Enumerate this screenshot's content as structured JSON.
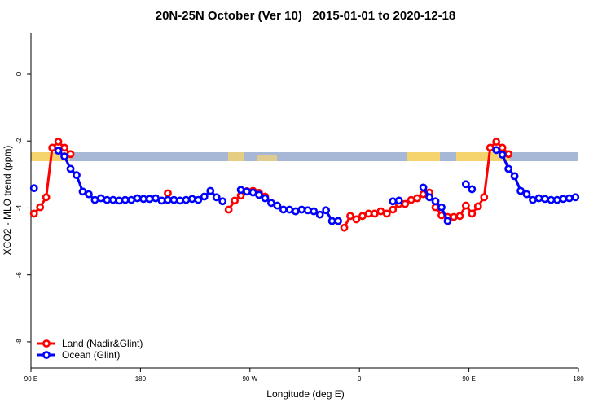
{
  "chart_data": {
    "type": "line",
    "title": "20N-25N October (Ver 10)   2015-01-01 to 2020-12-18",
    "xlabel": "Longitude (deg E)",
    "ylabel": "XCO2 - MLO trend (ppm)",
    "xlim": [
      90,
      540
    ],
    "xticks": [
      {
        "value": 90,
        "label": "90 E"
      },
      180,
      {
        "value": 270,
        "label": "90 W"
      },
      {
        "value": 360,
        "label": "0"
      },
      {
        "value": 450,
        "label": "90 E"
      },
      {
        "value": 540,
        "label": "180"
      }
    ],
    "ylim": [
      -8.78,
      1.24
    ],
    "yticks": [
      0,
      -2,
      -4,
      -6,
      -8
    ],
    "legend": "bottom-left",
    "x": [
      92.5,
      97.5,
      102.5,
      107.5,
      112.5,
      117.5,
      122.5,
      127.5,
      132.5,
      137.5,
      142.5,
      147.5,
      152.5,
      157.5,
      162.5,
      167.5,
      172.5,
      177.5,
      182.5,
      187.5,
      192.5,
      197.5,
      202.5,
      207.5,
      212.5,
      217.5,
      222.5,
      227.5,
      232.5,
      237.5,
      242.5,
      247.5,
      252.5,
      257.5,
      262.5,
      267.5,
      272.5,
      277.5,
      282.5,
      287.5,
      292.5,
      297.5,
      302.5,
      307.5,
      312.5,
      317.5,
      322.5,
      327.5,
      332.5,
      337.5,
      342.5,
      347.5,
      352.5,
      357.5,
      362.5,
      367.5,
      372.5,
      377.5,
      382.5,
      387.5,
      392.5,
      397.5,
      402.5,
      407.5,
      412.5,
      417.5,
      422.5,
      427.5,
      432.5,
      437.5,
      442.5,
      447.5,
      452.5,
      457.5,
      462.5,
      467.5,
      472.5,
      477.5,
      482.5,
      487.5,
      492.5,
      497.5,
      502.5,
      507.5,
      512.5,
      517.5,
      522.5,
      527.5,
      532.5,
      537.5
    ],
    "series": [
      {
        "name": "Land (Nadir&Glint)",
        "color": "#ff0000",
        "values": [
          -4.17,
          -3.98,
          -3.68,
          -2.2,
          -2.02,
          -2.2,
          -2.39,
          null,
          null,
          null,
          null,
          null,
          null,
          null,
          null,
          null,
          null,
          null,
          null,
          null,
          null,
          null,
          -3.56,
          null,
          null,
          null,
          null,
          null,
          null,
          null,
          null,
          null,
          -4.05,
          -3.78,
          -3.63,
          -3.5,
          -3.49,
          -3.55,
          -3.66,
          null,
          null,
          null,
          null,
          null,
          null,
          null,
          null,
          null,
          null,
          null,
          null,
          -4.59,
          -4.24,
          -4.34,
          -4.24,
          -4.17,
          -4.17,
          -4.1,
          -4.17,
          -4.05,
          -3.88,
          -3.88,
          -3.76,
          -3.71,
          -3.59,
          -3.54,
          -3.98,
          -4.22,
          -4.27,
          -4.27,
          -4.24,
          -3.93,
          -4.17,
          -3.95,
          -3.68,
          -2.2,
          -2.02,
          -2.2,
          -2.39,
          null,
          null,
          null,
          null,
          null,
          null,
          null,
          null,
          null,
          null,
          null
        ]
      },
      {
        "name": "Ocean (Glint)",
        "color": "#0000ff",
        "values": [
          -3.41,
          null,
          null,
          null,
          -2.29,
          -2.46,
          -2.83,
          -3.02,
          -3.51,
          -3.59,
          -3.76,
          -3.71,
          -3.76,
          -3.76,
          -3.78,
          -3.76,
          -3.76,
          -3.71,
          -3.73,
          -3.73,
          -3.71,
          -3.78,
          -3.76,
          -3.76,
          -3.78,
          -3.76,
          -3.73,
          -3.76,
          -3.66,
          -3.49,
          -3.68,
          -3.8,
          null,
          null,
          -3.46,
          -3.51,
          -3.54,
          -3.61,
          -3.71,
          -3.85,
          -3.93,
          -4.05,
          -4.05,
          -4.1,
          -4.05,
          -4.07,
          -4.1,
          -4.2,
          -4.07,
          -4.39,
          -4.39,
          null,
          null,
          null,
          null,
          null,
          null,
          null,
          null,
          -3.8,
          -3.78,
          null,
          null,
          null,
          -3.39,
          -3.68,
          -3.8,
          -3.98,
          -4.39,
          null,
          null,
          -3.29,
          -3.44,
          null,
          null,
          null,
          -2.27,
          -2.41,
          -2.83,
          -3.05,
          -3.49,
          -3.59,
          -3.76,
          -3.71,
          -3.73,
          -3.76,
          -3.76,
          -3.73,
          -3.71,
          -3.68
        ]
      }
    ]
  }
}
